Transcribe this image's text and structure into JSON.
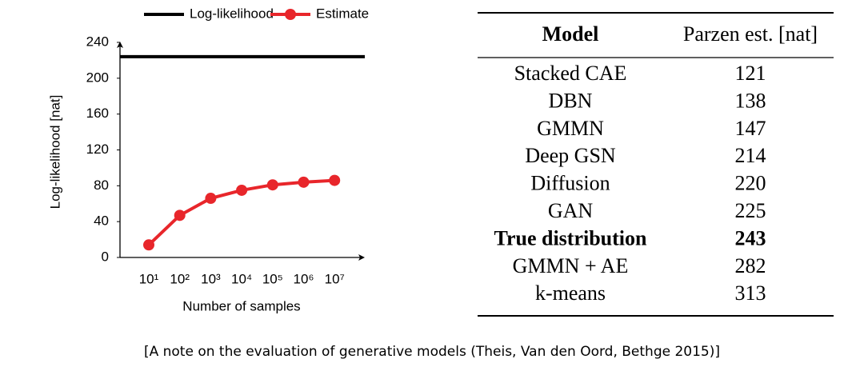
{
  "chart_data": {
    "type": "line",
    "x_label": "Number of samples",
    "y_label": "Log-likelihood [nat]",
    "categories": [
      "10¹",
      "10²",
      "10³",
      "10⁴",
      "10⁵",
      "10⁶",
      "10⁷"
    ],
    "hline": {
      "name": "Log-likelihood",
      "value": 224,
      "color": "#000000"
    },
    "series": [
      {
        "name": "Estimate",
        "color": "#e8262b",
        "values": [
          14,
          47,
          66,
          75,
          81,
          84,
          86
        ]
      }
    ],
    "ylim": [
      0,
      240
    ],
    "yticks": [
      0,
      40,
      80,
      120,
      160,
      200,
      240
    ],
    "grid": false,
    "legend": "top"
  },
  "table": {
    "header": [
      "Model",
      "Parzen est. [nat]"
    ],
    "rows": [
      {
        "cells": [
          "Stacked CAE",
          "121"
        ]
      },
      {
        "cells": [
          "DBN",
          "138"
        ]
      },
      {
        "cells": [
          "GMMN",
          "147"
        ]
      },
      {
        "cells": [
          "Deep GSN",
          "214"
        ]
      },
      {
        "cells": [
          "Diffusion",
          "220"
        ]
      },
      {
        "cells": [
          "GAN",
          "225"
        ]
      },
      {
        "cells": [
          "True distribution",
          "243"
        ],
        "bold": true
      },
      {
        "cells": [
          "GMMN + AE",
          "282"
        ],
        "value_color": "#e8262b"
      },
      {
        "cells": [
          "k-means",
          "313"
        ],
        "value_color": "#e8262b"
      }
    ]
  },
  "caption": "[A note on the evaluation of generative models (Theis, Van den Oord, Bethge 2015)]"
}
